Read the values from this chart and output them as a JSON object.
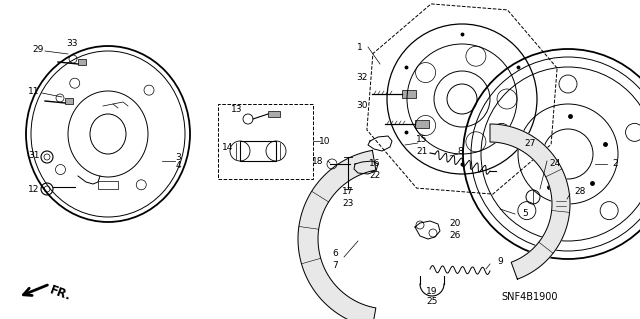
{
  "background_color": "#ffffff",
  "fig_width": 6.4,
  "fig_height": 3.19,
  "dpi": 100,
  "diagram_code": "SNF4B1900",
  "fr_label": "FR."
}
